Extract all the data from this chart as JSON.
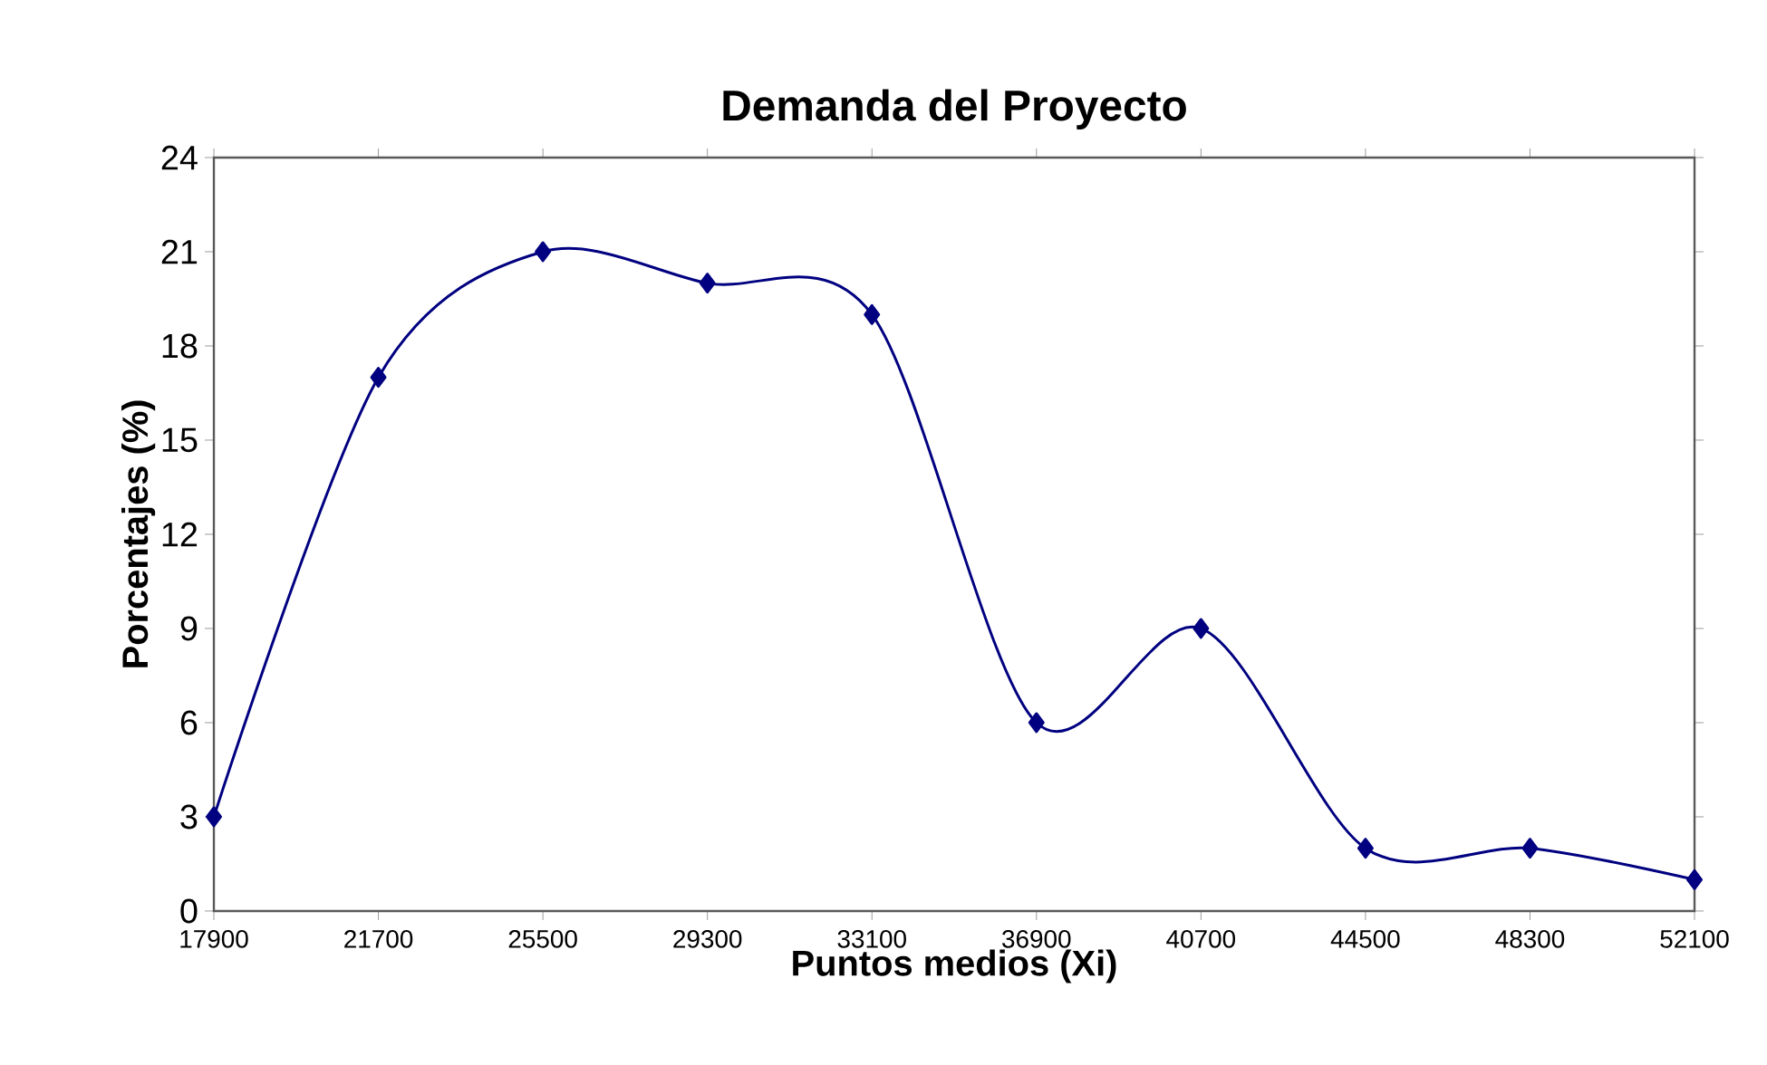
{
  "chart_data": {
    "type": "line",
    "title": "Demanda del Proyecto",
    "xlabel": "Puntos medios (Xi)",
    "ylabel": "Porcentajes (%)",
    "categories": [
      "17900",
      "21700",
      "25500",
      "29300",
      "33100",
      "36900",
      "40700",
      "44500",
      "48300",
      "52100"
    ],
    "values": [
      3,
      17,
      21,
      20,
      19,
      6,
      9,
      2,
      2,
      1
    ],
    "color": "#000080",
    "marker": "diamond",
    "line_style": "solid",
    "ylim": [
      0,
      24
    ],
    "yticks": [
      0,
      3,
      6,
      9,
      12,
      15,
      18,
      21,
      24
    ]
  }
}
